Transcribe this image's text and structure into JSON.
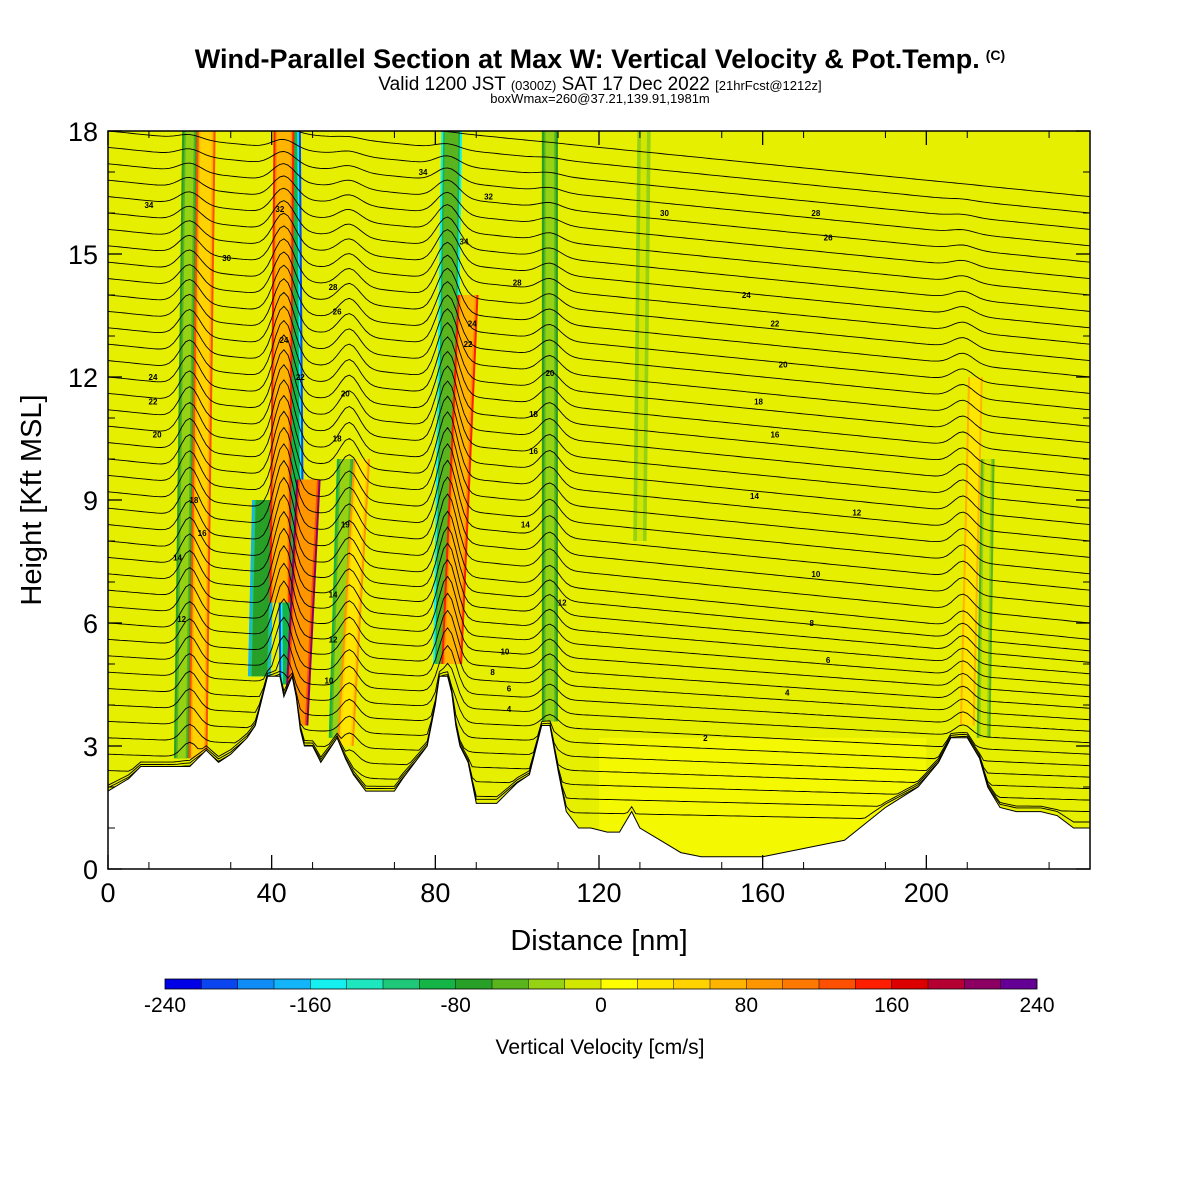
{
  "header": {
    "title": "Wind-Parallel Section at Max W: Vertical Velocity & Pot.Temp.",
    "copyright": "(C)",
    "valid_prefix": "Valid 1200 JST",
    "valid_utc": "(0300Z)",
    "valid_date": "SAT 17 Dec 2022",
    "forecast": "[21hrFcst@1212z]",
    "box_info": "boxWmax=260@37.21,139.91,1981m"
  },
  "chart_data": {
    "type": "heatmap",
    "xlabel": "Distance [nm]",
    "ylabel": "Height [Kft MSL]",
    "xlim": [
      0,
      240
    ],
    "ylim": [
      0,
      18
    ],
    "x_ticks": [
      0,
      40,
      80,
      120,
      160,
      200
    ],
    "y_ticks": [
      0,
      3,
      6,
      9,
      12,
      15,
      18
    ],
    "terrain": [
      [
        0,
        1.9
      ],
      [
        5,
        2.2
      ],
      [
        8,
        2.5
      ],
      [
        16,
        2.5
      ],
      [
        20,
        2.5
      ],
      [
        22,
        2.7
      ],
      [
        24,
        2.9
      ],
      [
        27,
        2.6
      ],
      [
        30,
        2.8
      ],
      [
        34,
        3.2
      ],
      [
        36,
        3.5
      ],
      [
        38,
        4.3
      ],
      [
        39,
        4.7
      ],
      [
        42,
        4.7
      ],
      [
        43,
        4.2
      ],
      [
        45,
        4.7
      ],
      [
        46,
        4.2
      ],
      [
        47,
        3.4
      ],
      [
        48,
        3.0
      ],
      [
        50,
        3.0
      ],
      [
        52,
        2.6
      ],
      [
        54,
        2.9
      ],
      [
        56,
        3.2
      ],
      [
        58,
        2.7
      ],
      [
        60,
        2.3
      ],
      [
        63,
        1.9
      ],
      [
        70,
        1.9
      ],
      [
        72,
        2.2
      ],
      [
        75,
        2.6
      ],
      [
        78,
        3.0
      ],
      [
        80,
        4.0
      ],
      [
        81,
        4.7
      ],
      [
        83,
        4.7
      ],
      [
        84,
        4.3
      ],
      [
        85,
        3.5
      ],
      [
        86,
        3.0
      ],
      [
        88,
        2.6
      ],
      [
        90,
        1.6
      ],
      [
        95,
        1.6
      ],
      [
        100,
        2.1
      ],
      [
        103,
        2.3
      ],
      [
        106,
        3.5
      ],
      [
        108,
        3.5
      ],
      [
        110,
        2.4
      ],
      [
        112,
        1.4
      ],
      [
        115,
        1.0
      ],
      [
        118,
        1.0
      ],
      [
        122,
        0.9
      ],
      [
        125,
        0.9
      ],
      [
        128,
        1.4
      ],
      [
        130,
        1.0
      ],
      [
        135,
        0.7
      ],
      [
        140,
        0.4
      ],
      [
        145,
        0.3
      ],
      [
        150,
        0.3
      ],
      [
        160,
        0.3
      ],
      [
        170,
        0.5
      ],
      [
        180,
        0.7
      ],
      [
        190,
        1.5
      ],
      [
        198,
        2.0
      ],
      [
        203,
        2.6
      ],
      [
        206,
        3.2
      ],
      [
        210,
        3.2
      ],
      [
        213,
        2.7
      ],
      [
        215,
        2.0
      ],
      [
        218,
        1.5
      ],
      [
        222,
        1.4
      ],
      [
        228,
        1.4
      ],
      [
        232,
        1.3
      ],
      [
        236,
        1.0
      ],
      [
        240,
        1.0
      ]
    ],
    "updraft_bands": [
      {
        "x0": 22,
        "y0": 2.7,
        "x1": 24,
        "y1": 18,
        "w": 120
      },
      {
        "x0": 42,
        "y0": 6.5,
        "x1": 43,
        "y1": 18,
        "w": 150
      },
      {
        "x0": 46,
        "y0": 3.5,
        "x1": 49,
        "y1": 9.5,
        "w": 200
      },
      {
        "x0": 58,
        "y0": 3.0,
        "x1": 62,
        "y1": 10,
        "w": 90
      },
      {
        "x0": 84,
        "y0": 5.0,
        "x1": 88,
        "y1": 14,
        "w": 150
      },
      {
        "x0": 210,
        "y0": 3.5,
        "x1": 212,
        "y1": 12,
        "w": 60
      }
    ],
    "downdraft_bands": [
      {
        "x0": 18,
        "y0": 2.7,
        "x1": 20,
        "y1": 18,
        "w": -70
      },
      {
        "x0": 37,
        "y0": 4.7,
        "x1": 38,
        "y1": 9,
        "w": -180
      },
      {
        "x0": 45,
        "y0": 4.5,
        "x1": 44,
        "y1": 18,
        "w": -220
      },
      {
        "x0": 56,
        "y0": 3.2,
        "x1": 58,
        "y1": 10,
        "w": -90
      },
      {
        "x0": 82,
        "y0": 5.0,
        "x1": 84,
        "y1": 18,
        "w": -150
      },
      {
        "x0": 108,
        "y0": 3.6,
        "x1": 108,
        "y1": 18,
        "w": -80
      },
      {
        "x0": 130,
        "y0": 8,
        "x1": 131,
        "y1": 18,
        "w": -40
      },
      {
        "x0": 214,
        "y0": 3.2,
        "x1": 215,
        "y1": 10,
        "w": -45
      }
    ],
    "theta_label_points": [
      {
        "label": "34",
        "x": 10,
        "y": 16.2
      },
      {
        "label": "30",
        "x": 29,
        "y": 14.9
      },
      {
        "label": "32",
        "x": 42,
        "y": 16.1
      },
      {
        "label": "28",
        "x": 55,
        "y": 14.2
      },
      {
        "label": "26",
        "x": 56,
        "y": 13.6
      },
      {
        "label": "24",
        "x": 43,
        "y": 12.9
      },
      {
        "label": "22",
        "x": 47,
        "y": 12.0
      },
      {
        "label": "20",
        "x": 58,
        "y": 11.6
      },
      {
        "label": "18",
        "x": 56,
        "y": 10.5
      },
      {
        "label": "24",
        "x": 11,
        "y": 12.0
      },
      {
        "label": "22",
        "x": 11,
        "y": 11.4
      },
      {
        "label": "20",
        "x": 12,
        "y": 10.6
      },
      {
        "label": "18",
        "x": 21,
        "y": 9.0
      },
      {
        "label": "16",
        "x": 23,
        "y": 8.2
      },
      {
        "label": "14",
        "x": 17,
        "y": 7.6
      },
      {
        "label": "12",
        "x": 18,
        "y": 6.1
      },
      {
        "label": "19",
        "x": 58,
        "y": 8.4
      },
      {
        "label": "14",
        "x": 55,
        "y": 6.7
      },
      {
        "label": "12",
        "x": 55,
        "y": 5.6
      },
      {
        "label": "10",
        "x": 54,
        "y": 4.6
      },
      {
        "label": "34",
        "x": 77,
        "y": 17.0
      },
      {
        "label": "32",
        "x": 93,
        "y": 16.4
      },
      {
        "label": "34",
        "x": 87,
        "y": 15.3
      },
      {
        "label": "28",
        "x": 100,
        "y": 14.3
      },
      {
        "label": "24",
        "x": 89,
        "y": 13.3
      },
      {
        "label": "22",
        "x": 88,
        "y": 12.8
      },
      {
        "label": "20",
        "x": 108,
        "y": 12.1
      },
      {
        "label": "18",
        "x": 104,
        "y": 11.1
      },
      {
        "label": "16",
        "x": 104,
        "y": 10.2
      },
      {
        "label": "14",
        "x": 102,
        "y": 8.4
      },
      {
        "label": "12",
        "x": 111,
        "y": 6.5
      },
      {
        "label": "10",
        "x": 97,
        "y": 5.3
      },
      {
        "label": "8",
        "x": 94,
        "y": 4.8
      },
      {
        "label": "6",
        "x": 98,
        "y": 4.4
      },
      {
        "label": "4",
        "x": 98,
        "y": 3.9
      },
      {
        "label": "2",
        "x": 146,
        "y": 3.2
      },
      {
        "label": "30",
        "x": 136,
        "y": 16.0
      },
      {
        "label": "28",
        "x": 173,
        "y": 16.0
      },
      {
        "label": "26",
        "x": 176,
        "y": 15.4
      },
      {
        "label": "24",
        "x": 156,
        "y": 14.0
      },
      {
        "label": "22",
        "x": 163,
        "y": 13.3
      },
      {
        "label": "20",
        "x": 165,
        "y": 12.3
      },
      {
        "label": "18",
        "x": 159,
        "y": 11.4
      },
      {
        "label": "16",
        "x": 163,
        "y": 10.6
      },
      {
        "label": "14",
        "x": 158,
        "y": 9.1
      },
      {
        "label": "12",
        "x": 183,
        "y": 8.7
      },
      {
        "label": "10",
        "x": 173,
        "y": 7.2
      },
      {
        "label": "8",
        "x": 172,
        "y": 6.0
      },
      {
        "label": "6",
        "x": 176,
        "y": 5.1
      },
      {
        "label": "4",
        "x": 166,
        "y": 4.3
      }
    ],
    "colorbar": {
      "label": "Vertical Velocity [cm/s]",
      "range": [
        -240,
        240
      ],
      "step": 20,
      "tick_labels": [
        "-240",
        "-160",
        "-80",
        "0",
        "80",
        "160",
        "240"
      ],
      "tick_values": [
        -240,
        -160,
        -80,
        0,
        80,
        160,
        240
      ],
      "colors": [
        "#0000e6",
        "#0a46f0",
        "#0f8cf5",
        "#14b4fa",
        "#14f0f0",
        "#1ee6be",
        "#1ec878",
        "#14b446",
        "#28a028",
        "#5ab41e",
        "#96d214",
        "#d2e600",
        "#ffff00",
        "#ffe600",
        "#ffd200",
        "#ffb400",
        "#ff9600",
        "#ff7800",
        "#ff5000",
        "#ff1e00",
        "#dc0000",
        "#b40032",
        "#8c0064",
        "#640096"
      ]
    }
  }
}
